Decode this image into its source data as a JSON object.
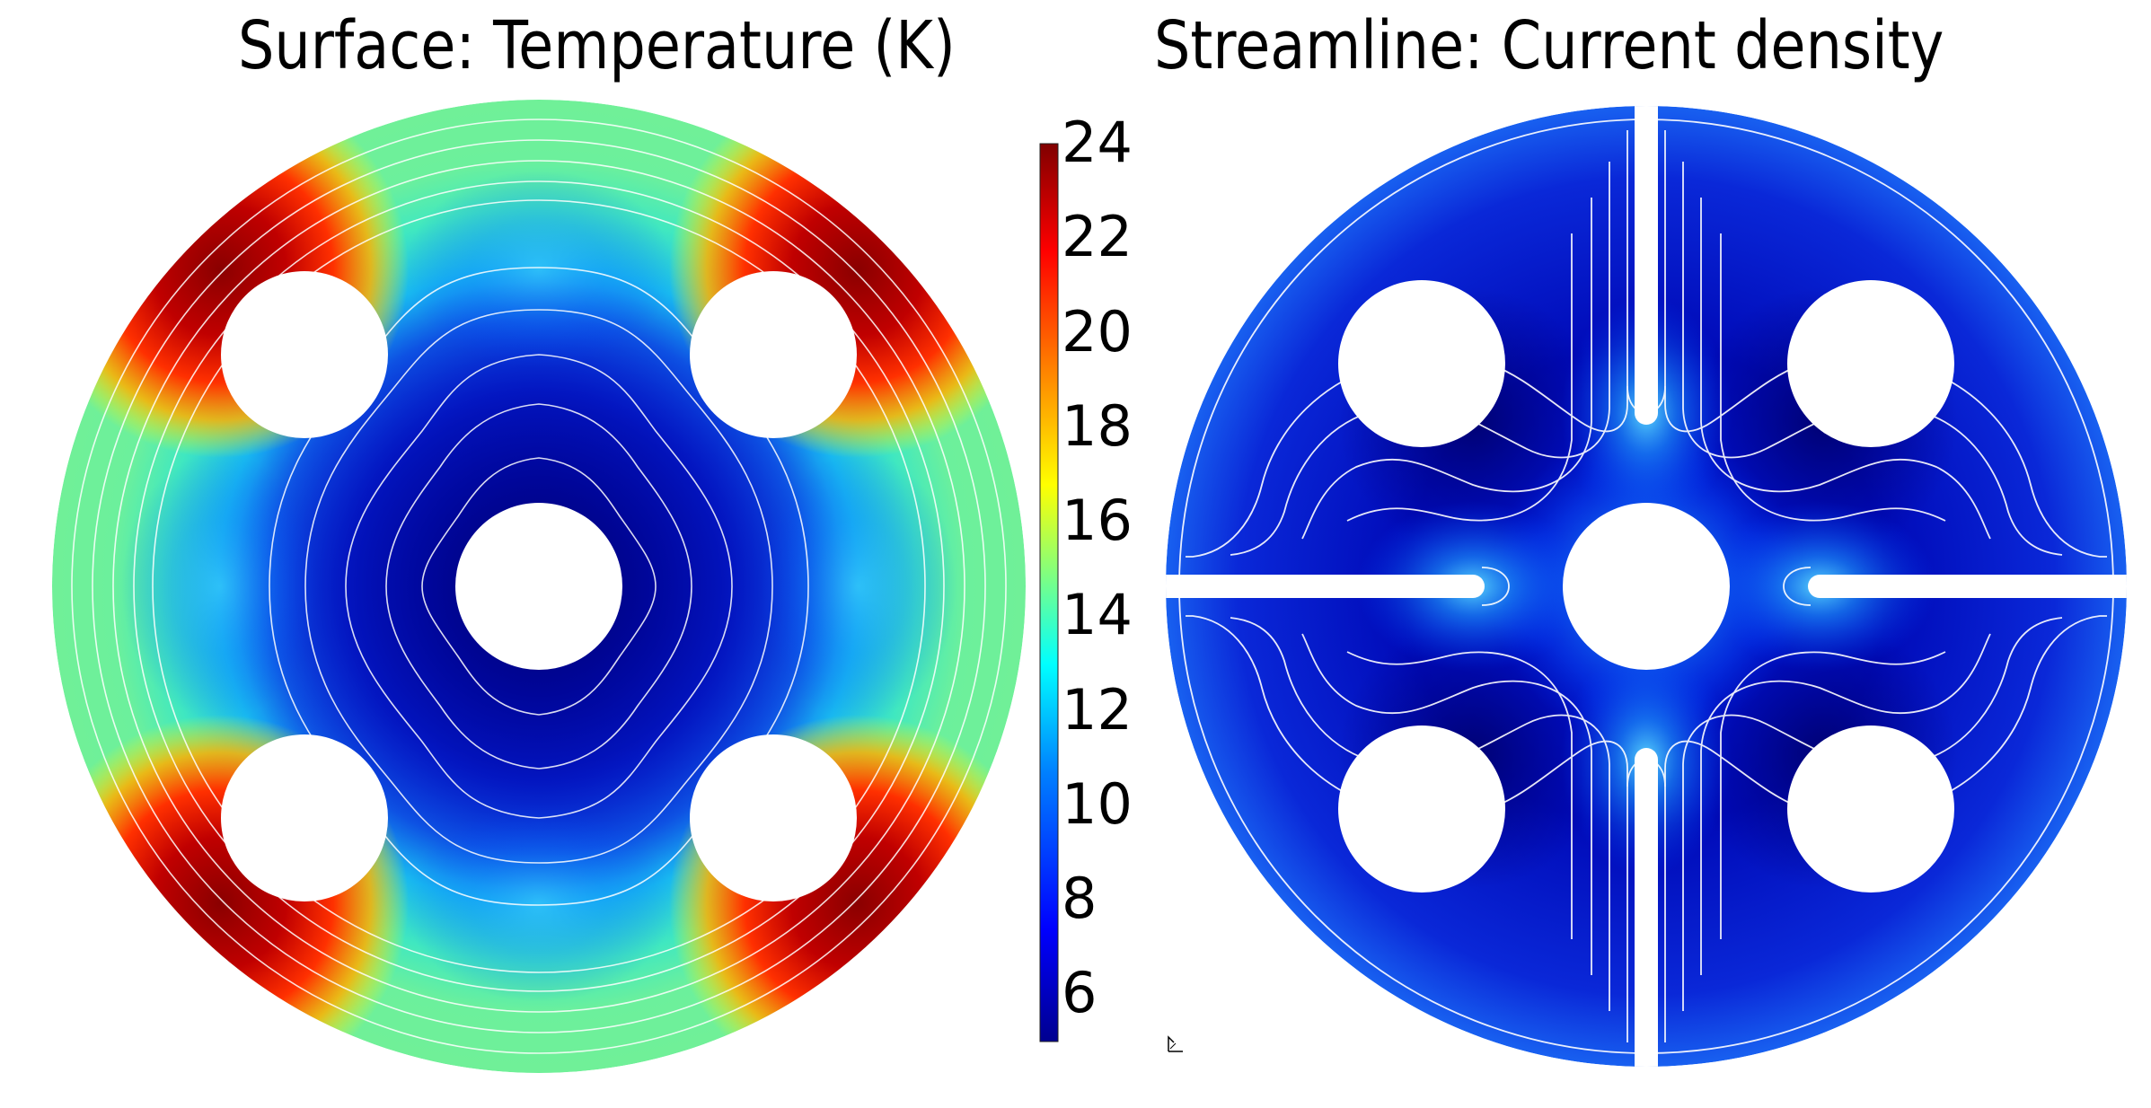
{
  "left_panel": {
    "title": "Surface: Temperature (K)"
  },
  "right_panel": {
    "title": "Streamline: Current density"
  },
  "colorbar": {
    "min": 5,
    "max": 24,
    "ticks": [
      "24",
      "22",
      "20",
      "18",
      "16",
      "14",
      "12",
      "10",
      "8",
      "6"
    ],
    "colormap": [
      "#00008f",
      "#0000ff",
      "#0080ff",
      "#00ffff",
      "#80ff80",
      "#ffff00",
      "#ff8000",
      "#ff0000",
      "#800000"
    ]
  },
  "colors": {
    "background": "#ffffff",
    "streamline": "#ffffff",
    "contour": "#ffffff",
    "cold": "#0a10c8",
    "warm": "#60f090",
    "hot": "#a00000"
  }
}
